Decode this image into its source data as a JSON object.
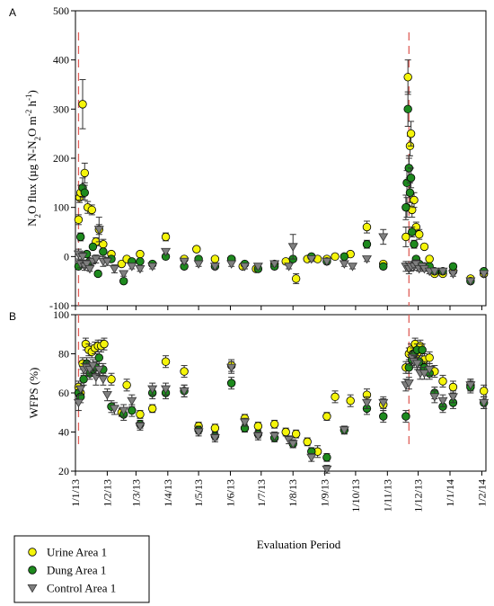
{
  "chart_data": {
    "type": "scatter",
    "x_axis": {
      "label": "Evaluation Period",
      "ticks": [
        "1/1/13",
        "1/2/13",
        "1/3/13",
        "1/4/13",
        "1/5/13",
        "1/6/13",
        "1/7/13",
        "1/8/13",
        "1/9/13",
        "1/10/13",
        "1/11/13",
        "1/12/13",
        "1/1/14",
        "1/2/14"
      ],
      "range_days": [
        0,
        400
      ]
    },
    "vertical_markers_day": [
      3,
      325
    ],
    "legend": {
      "placement": "bottom-left",
      "entries": [
        {
          "name": "Urine Area 1",
          "marker": "circle",
          "color": "#f5f50a"
        },
        {
          "name": "Dung Area 1",
          "marker": "circle",
          "color": "#1e8a1e"
        },
        {
          "name": "Control Area 1",
          "marker": "triangle-down",
          "color": "#7f7f7f"
        }
      ]
    },
    "panels": [
      {
        "letter": "A",
        "ylabel_parts": [
          "N",
          "2",
          "O flux (µg N-N",
          "2",
          "O m",
          "-2",
          " h",
          "-1",
          ")"
        ],
        "ylim": [
          -100,
          500
        ],
        "yticks": [
          -100,
          0,
          100,
          200,
          300,
          400,
          500
        ],
        "series": [
          {
            "name": "Urine Area 1",
            "x": [
              3,
              4,
              5,
              7,
              9,
              12,
              16,
              20,
              23,
              27,
              35,
              45,
              50,
              63,
              88,
              106,
              118,
              136,
              152,
              163,
              176,
              194,
              205,
              215,
              226,
              236,
              245,
              253,
              268,
              284,
              300,
              322,
              323,
              324,
              325,
              326,
              327,
              328,
              330,
              332,
              335,
              340,
              345,
              350,
              358,
              368,
              385,
              398
            ],
            "y": [
              75,
              120,
              130,
              310,
              170,
              100,
              95,
              30,
              55,
              25,
              5,
              -15,
              -5,
              5,
              40,
              -5,
              15,
              -5,
              -5,
              -20,
              -25,
              -15,
              -10,
              -45,
              -5,
              -5,
              -5,
              0,
              5,
              60,
              -15,
              40,
              100,
              365,
              180,
              225,
              250,
              95,
              115,
              60,
              45,
              20,
              -5,
              -35,
              -35,
              -30,
              -45,
              -35
            ],
            "err": [
              10,
              10,
              15,
              50,
              20,
              12,
              10,
              8,
              10,
              10,
              5,
              5,
              5,
              5,
              8,
              5,
              5,
              5,
              5,
              5,
              5,
              5,
              5,
              10,
              5,
              5,
              5,
              5,
              5,
              12,
              5,
              20,
              20,
              35,
              20,
              20,
              25,
              15,
              15,
              10,
              10,
              5,
              5,
              5,
              5,
              5,
              5,
              5
            ]
          },
          {
            "name": "Dung Area 1",
            "x": [
              3,
              5,
              7,
              9,
              11,
              14,
              17,
              22,
              27,
              35,
              47,
              55,
              63,
              75,
              88,
              106,
              120,
              136,
              152,
              165,
              178,
              194,
              212,
              230,
              245,
              262,
              284,
              300,
              322,
              323,
              324,
              325,
              326,
              327,
              328,
              330,
              332,
              335,
              340,
              345,
              350,
              358,
              368,
              385,
              398
            ],
            "y": [
              -20,
              40,
              140,
              130,
              5,
              -10,
              20,
              -35,
              10,
              -5,
              -50,
              -10,
              -10,
              -15,
              0,
              -20,
              -5,
              -20,
              -5,
              -15,
              -25,
              -20,
              -5,
              0,
              -10,
              0,
              25,
              -20,
              100,
              150,
              300,
              180,
              130,
              160,
              50,
              25,
              -5,
              -15,
              -20,
              -20,
              -30,
              -30,
              -20,
              -50,
              -30
            ],
            "err": [
              5,
              8,
              20,
              15,
              5,
              5,
              5,
              5,
              5,
              5,
              5,
              5,
              5,
              5,
              5,
              5,
              5,
              5,
              5,
              5,
              5,
              5,
              5,
              5,
              5,
              5,
              8,
              5,
              25,
              25,
              35,
              25,
              20,
              20,
              10,
              8,
              5,
              5,
              5,
              5,
              5,
              5,
              5,
              5,
              5
            ]
          },
          {
            "name": "Control Area 1",
            "x": [
              3,
              5,
              7,
              9,
              11,
              14,
              17,
              20,
              23,
              27,
              31,
              38,
              47,
              55,
              63,
              75,
              88,
              106,
              120,
              136,
              152,
              165,
              178,
              194,
              208,
              212,
              230,
              245,
              262,
              270,
              284,
              300,
              322,
              325,
              327,
              330,
              332,
              335,
              338,
              340,
              345,
              350,
              358,
              368,
              385,
              398
            ],
            "y": [
              5,
              -15,
              0,
              -20,
              -15,
              -25,
              -10,
              -5,
              55,
              -10,
              -10,
              -25,
              -35,
              -20,
              -25,
              -20,
              10,
              -10,
              -15,
              -20,
              -15,
              -20,
              -20,
              -15,
              -20,
              20,
              -5,
              -10,
              -15,
              -20,
              -5,
              40,
              -20,
              -25,
              -20,
              -20,
              -15,
              -25,
              -20,
              -25,
              -30,
              -30,
              -30,
              -35,
              -50,
              -35
            ],
            "err": [
              10,
              8,
              8,
              8,
              8,
              5,
              5,
              8,
              25,
              10,
              8,
              8,
              5,
              5,
              5,
              5,
              5,
              5,
              5,
              5,
              5,
              5,
              5,
              5,
              5,
              25,
              5,
              5,
              5,
              5,
              5,
              15,
              10,
              10,
              10,
              8,
              8,
              5,
              5,
              5,
              5,
              5,
              5,
              5,
              5,
              5
            ]
          }
        ]
      },
      {
        "letter": "B",
        "ylabel": "WFPS (%)",
        "ylim": [
          20,
          100
        ],
        "yticks": [
          20,
          40,
          60,
          80,
          100
        ],
        "series": [
          {
            "name": "Urine Area 1",
            "x": [
              3,
              5,
              7,
              10,
              13,
              16,
              19,
              22,
              25,
              28,
              35,
              45,
              50,
              63,
              75,
              88,
              106,
              120,
              136,
              152,
              165,
              178,
              194,
              205,
              215,
              226,
              236,
              245,
              253,
              268,
              284,
              300,
              322,
              325,
              327,
              329,
              331,
              333,
              336,
              340,
              345,
              350,
              358,
              368,
              385,
              398
            ],
            "y": [
              63,
              60,
              75,
              85,
              82,
              81,
              83,
              84,
              84,
              85,
              67,
              50,
              64,
              49,
              52,
              76,
              71,
              43,
              42,
              74,
              47,
              43,
              44,
              40,
              39,
              35,
              30,
              48,
              58,
              56,
              59,
              54,
              73,
              80,
              82,
              80,
              85,
              80,
              84,
              77,
              78,
              71,
              66,
              63,
              64,
              61
            ],
            "err": [
              3,
              3,
              3,
              3,
              3,
              3,
              3,
              3,
              3,
              3,
              3,
              2,
              3,
              2,
              2,
              3,
              3,
              2,
              2,
              3,
              2,
              2,
              2,
              2,
              2,
              2,
              3,
              2,
              3,
              3,
              3,
              3,
              3,
              3,
              3,
              3,
              3,
              3,
              3,
              3,
              3,
              3,
              3,
              3,
              3,
              3
            ]
          },
          {
            "name": "Dung Area 1",
            "x": [
              3,
              5,
              8,
              11,
              14,
              17,
              20,
              23,
              27,
              35,
              47,
              55,
              63,
              75,
              88,
              106,
              120,
              136,
              152,
              165,
              178,
              194,
              212,
              230,
              245,
              262,
              284,
              300,
              322,
              325,
              328,
              330,
              333,
              335,
              338,
              340,
              345,
              350,
              358,
              368,
              385,
              398
            ],
            "y": [
              60,
              58,
              67,
              75,
              70,
              72,
              73,
              78,
              72,
              53,
              49,
              51,
              44,
              60,
              60,
              61,
              41,
              38,
              65,
              42,
              39,
              37,
              34,
              30,
              27,
              41,
              52,
              48,
              48,
              73,
              77,
              80,
              82,
              76,
              82,
              73,
              70,
              60,
              53,
              55,
              63,
              55
            ],
            "err": [
              3,
              3,
              3,
              3,
              3,
              3,
              3,
              3,
              3,
              3,
              3,
              3,
              2,
              3,
              3,
              3,
              2,
              2,
              3,
              2,
              2,
              2,
              2,
              2,
              2,
              2,
              3,
              3,
              3,
              3,
              3,
              3,
              3,
              3,
              3,
              3,
              3,
              3,
              3,
              3,
              3,
              3
            ]
          },
          {
            "name": "Control Area 1",
            "x": [
              3,
              5,
              8,
              11,
              14,
              17,
              20,
              23,
              27,
              31,
              38,
              47,
              55,
              63,
              75,
              88,
              106,
              120,
              136,
              152,
              165,
              178,
              194,
              208,
              212,
              230,
              245,
              262,
              284,
              300,
              322,
              325,
              328,
              330,
              333,
              336,
              340,
              345,
              350,
              358,
              368,
              385,
              398
            ],
            "y": [
              55,
              62,
              72,
              73,
              72,
              74,
              68,
              72,
              67,
              59,
              52,
              51,
              56,
              43,
              62,
              62,
              61,
              40,
              37,
              73,
              45,
              38,
              38,
              36,
              34,
              27,
              21,
              41,
              55,
              55,
              64,
              65,
              78,
              76,
              75,
              70,
              70,
              72,
              58,
              56,
              58,
              64,
              55
            ],
            "err": [
              4,
              3,
              3,
              3,
              3,
              3,
              4,
              3,
              3,
              3,
              3,
              3,
              3,
              2,
              3,
              3,
              3,
              2,
              2,
              3,
              2,
              2,
              2,
              2,
              2,
              2,
              2,
              2,
              3,
              3,
              3,
              3,
              3,
              3,
              3,
              3,
              3,
              3,
              3,
              3,
              3,
              3,
              3
            ]
          }
        ]
      }
    ]
  }
}
